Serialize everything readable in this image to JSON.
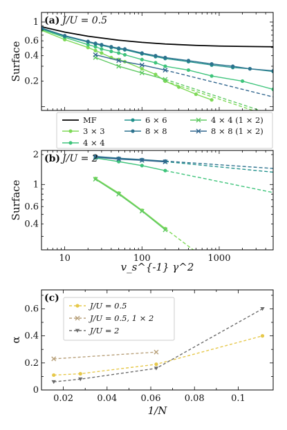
{
  "chart_data": [
    {
      "type": "line",
      "panel_label": "(a)",
      "title": "J/U = 0.5",
      "xlabel": "",
      "ylabel": "Surface",
      "x_scale": "log",
      "y_scale": "log",
      "xlim": [
        5,
        5000
      ],
      "ylim": [
        0.09,
        1.3
      ],
      "y_ticks": [
        "1",
        "0.6",
        "0.4",
        "0.2"
      ],
      "x_ticks": [],
      "series": [
        {
          "name": "MF",
          "color": "#000000",
          "marker": "none",
          "x": [
            5,
            10,
            20,
            50,
            100,
            200,
            500,
            1000,
            2000,
            5000
          ],
          "y": [
            0.88,
            0.76,
            0.68,
            0.61,
            0.575,
            0.55,
            0.53,
            0.52,
            0.515,
            0.51
          ],
          "fit": null
        },
        {
          "name": "3 × 3",
          "color": "#7ed957",
          "marker": "circle",
          "x": [
            5,
            10,
            20,
            25,
            30,
            40,
            50,
            60,
            100,
            150,
            200,
            300,
            500,
            800
          ],
          "y": [
            0.8,
            0.62,
            0.5,
            0.46,
            0.43,
            0.38,
            0.36,
            0.34,
            0.28,
            0.24,
            0.2,
            0.17,
            0.14,
            0.12
          ],
          "fit": {
            "x": [
              200,
              5000
            ],
            "y": [
              0.2,
              0.075
            ]
          }
        },
        {
          "name": "4 × 4",
          "color": "#3ec47b",
          "marker": "circle",
          "x": [
            5,
            10,
            20,
            25,
            30,
            40,
            50,
            60,
            100,
            150,
            200,
            400,
            800,
            2000,
            5000
          ],
          "y": [
            0.82,
            0.66,
            0.54,
            0.51,
            0.48,
            0.45,
            0.43,
            0.41,
            0.36,
            0.33,
            0.3,
            0.27,
            0.23,
            0.2,
            0.16
          ],
          "fit": null
        },
        {
          "name": "6 × 6",
          "color": "#21918c",
          "marker": "circle",
          "x": [
            5,
            10,
            20,
            25,
            30,
            40,
            50,
            60,
            100,
            150,
            200,
            400,
            800,
            1500,
            2500,
            5000
          ],
          "y": [
            0.84,
            0.68,
            0.58,
            0.55,
            0.53,
            0.5,
            0.48,
            0.47,
            0.42,
            0.39,
            0.37,
            0.34,
            0.31,
            0.29,
            0.28,
            0.26
          ],
          "fit": null
        },
        {
          "name": "8 × 8",
          "color": "#2c728e",
          "marker": "circle",
          "x": [
            5,
            10,
            20,
            25,
            30,
            40,
            50,
            60,
            100,
            150,
            200,
            400,
            800,
            1500,
            2500,
            5000
          ],
          "y": [
            0.85,
            0.69,
            0.59,
            0.56,
            0.54,
            0.51,
            0.49,
            0.48,
            0.43,
            0.4,
            0.38,
            0.35,
            0.32,
            0.3,
            0.28,
            0.265
          ],
          "fit": null
        },
        {
          "name": "4 × 4 (1 × 2)",
          "color": "#5ec962",
          "marker": "x",
          "x": [
            25,
            50,
            100,
            200
          ],
          "y": [
            0.38,
            0.3,
            0.25,
            0.21
          ],
          "fit": {
            "x": [
              200,
              5000
            ],
            "y": [
              0.21,
              0.08
            ]
          }
        },
        {
          "name": "8 × 8 (1 × 2)",
          "color": "#31668e",
          "marker": "x",
          "x": [
            25,
            50,
            100,
            200
          ],
          "y": [
            0.41,
            0.35,
            0.31,
            0.27
          ],
          "fit": {
            "x": [
              200,
              5000
            ],
            "y": [
              0.27,
              0.13
            ]
          }
        }
      ],
      "legend": {
        "placement": "bottom"
      }
    },
    {
      "type": "line",
      "panel_label": "(b)",
      "title": "J/U = 2",
      "xlabel": "v_s^{-1} γ^2",
      "ylabel": "Surface",
      "x_scale": "log",
      "y_scale": "log",
      "xlim": [
        5,
        5000
      ],
      "ylim": [
        0.22,
        2.2
      ],
      "x_ticks": [
        "10",
        "100",
        "1000"
      ],
      "y_ticks": [
        "2",
        "1",
        "0.6",
        "0.4"
      ],
      "series": [
        {
          "name": "3 × 3",
          "color": "#7ed957",
          "marker": "circle",
          "x": [
            25,
            50,
            100,
            200
          ],
          "y": [
            1.15,
            0.82,
            0.55,
            0.36
          ],
          "fit": {
            "x": [
              200,
              500
            ],
            "y": [
              0.36,
              0.21
            ]
          }
        },
        {
          "name": "4 × 4",
          "color": "#3ec47b",
          "marker": "circle",
          "x": [
            25,
            50,
            100,
            200
          ],
          "y": [
            1.85,
            1.7,
            1.55,
            1.38
          ],
          "fit": {
            "x": [
              200,
              5000
            ],
            "y": [
              1.38,
              0.83
            ]
          }
        },
        {
          "name": "6 × 6",
          "color": "#21918c",
          "marker": "circle",
          "x": [
            25,
            50,
            100,
            200
          ],
          "y": [
            1.9,
            1.82,
            1.76,
            1.7
          ],
          "fit": {
            "x": [
              200,
              5000
            ],
            "y": [
              1.7,
              1.33
            ]
          }
        },
        {
          "name": "8 × 8",
          "color": "#2c728e",
          "marker": "circle",
          "x": [
            25,
            50,
            100,
            200
          ],
          "y": [
            1.92,
            1.84,
            1.78,
            1.72
          ],
          "fit": {
            "x": [
              200,
              5000
            ],
            "y": [
              1.72,
              1.45
            ]
          }
        },
        {
          "name": "4 × 4 (1 × 2)",
          "color": "#5ec962",
          "marker": "x",
          "x": [
            25,
            50,
            100,
            200
          ],
          "y": [
            1.13,
            0.8,
            0.54,
            0.35
          ],
          "fit": null
        },
        {
          "name": "8 × 8 (1 × 2)",
          "color": "#31668e",
          "marker": "x",
          "x": [
            25,
            50,
            100,
            200
          ],
          "y": [
            1.88,
            1.8,
            1.75,
            1.69
          ],
          "fit": null
        }
      ]
    },
    {
      "type": "line",
      "panel_label": "(c)",
      "xlabel": "1/N",
      "ylabel": "α",
      "x_scale": "linear",
      "y_scale": "linear",
      "xlim": [
        0.01,
        0.116
      ],
      "ylim": [
        0,
        0.74
      ],
      "x_ticks": [
        "0.02",
        "0.04",
        "0.06",
        "0.08",
        "0.1"
      ],
      "y_ticks": [
        "0",
        "0.2",
        "0.4",
        "0.6"
      ],
      "series": [
        {
          "name": "J/U = 0.5",
          "color": "#e6c84a",
          "marker": "circle",
          "x": [
            0.0156,
            0.0278,
            0.0625,
            0.1111
          ],
          "y": [
            0.11,
            0.12,
            0.19,
            0.4
          ]
        },
        {
          "name": "J/U = 0.5, 1 × 2",
          "color": "#b8a07a",
          "marker": "x",
          "x": [
            0.0156,
            0.0625
          ],
          "y": [
            0.23,
            0.28
          ]
        },
        {
          "name": "J/U = 2",
          "color": "#6b6b6b",
          "marker": "triangle-down",
          "x": [
            0.0156,
            0.0278,
            0.0625,
            0.1111
          ],
          "y": [
            0.06,
            0.08,
            0.16,
            0.6
          ]
        }
      ],
      "legend": {
        "placement": "top-left"
      }
    }
  ]
}
